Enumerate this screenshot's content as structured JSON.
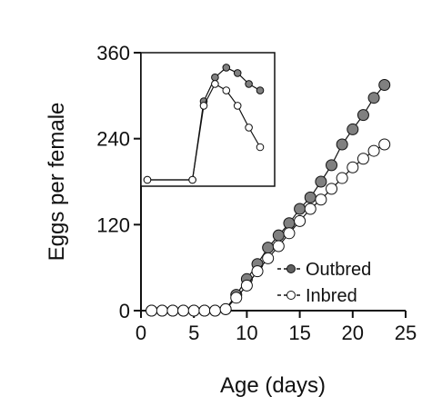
{
  "chart_data": [
    {
      "type": "line",
      "xlabel": "Age (days)",
      "ylabel": "Eggs per female",
      "xlim": [
        0,
        25
      ],
      "ylim": [
        0,
        360
      ],
      "x_ticks": [
        "0",
        "5",
        "10",
        "15",
        "20",
        "25"
      ],
      "y_ticks": [
        "0",
        "120",
        "240",
        "360"
      ],
      "legend": {
        "position": "lower-right",
        "entries": [
          "Outbred",
          "Inbred"
        ]
      },
      "series": [
        {
          "name": "Outbred",
          "marker": "filled",
          "color": "#808080",
          "x": [
            1,
            2,
            3,
            4,
            5,
            6,
            7,
            8,
            9,
            10,
            11,
            12,
            13,
            14,
            15,
            16,
            17,
            18,
            19,
            20,
            21,
            22,
            23
          ],
          "y": [
            0,
            0,
            0,
            0,
            0,
            0,
            0,
            2,
            22,
            44,
            65,
            88,
            105,
            122,
            142,
            158,
            180,
            203,
            232,
            253,
            273,
            297,
            315
          ]
        },
        {
          "name": "Inbred",
          "marker": "open",
          "color": "#ffffff",
          "x": [
            1,
            2,
            3,
            4,
            5,
            6,
            7,
            8,
            9,
            10,
            11,
            12,
            13,
            14,
            15,
            16,
            17,
            18,
            19,
            20,
            21,
            22,
            23
          ],
          "y": [
            0,
            0,
            0,
            0,
            0,
            0,
            0,
            2,
            18,
            35,
            55,
            73,
            90,
            108,
            125,
            142,
            155,
            170,
            185,
            200,
            212,
            223,
            232
          ]
        }
      ]
    },
    {
      "type": "line",
      "role": "inset",
      "series": [
        {
          "name": "Outbred",
          "marker": "filled",
          "color": "#808080",
          "x": [
            0,
            1,
            2,
            3,
            4,
            5,
            6,
            7,
            8,
            9,
            10
          ],
          "y": [
            0,
            0,
            0,
            0,
            0,
            72,
            94,
            103,
            98,
            88,
            82
          ]
        },
        {
          "name": "Inbred",
          "marker": "open",
          "color": "#ffffff",
          "x": [
            0,
            1,
            2,
            3,
            4,
            5,
            6,
            7,
            8,
            9,
            10
          ],
          "y": [
            0,
            0,
            0,
            0,
            0,
            68,
            88,
            82,
            68,
            48,
            30
          ]
        }
      ]
    }
  ]
}
